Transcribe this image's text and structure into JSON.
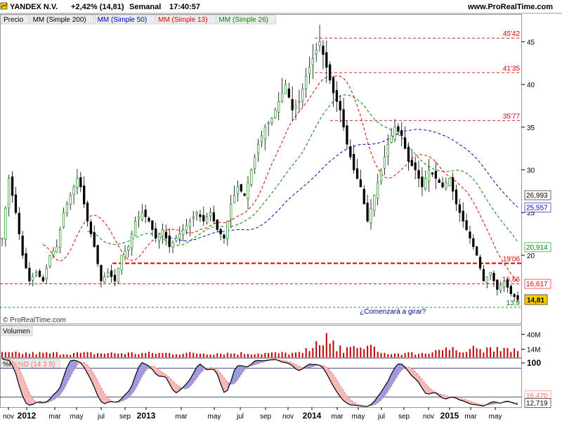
{
  "header": {
    "symbol": "YANDEX N.V.",
    "change": "+2,42% (14,81)",
    "period": "Semanal",
    "time": "17:40:57",
    "site": "www.ProRealTime.com"
  },
  "legend": {
    "items": [
      {
        "label": "Precio",
        "color": "#000000"
      },
      {
        "label": "MM (Simple 200)",
        "color": "#000000"
      },
      {
        "label": "MM (Simple 50)",
        "color": "#0000c8"
      },
      {
        "label": "MM (Simple 13)",
        "color": "#e00000"
      },
      {
        "label": "MM (Simple 26)",
        "color": "#008800"
      }
    ]
  },
  "watermark": "© ProRealTime.com",
  "annotation": "¿Comenzará a girar?",
  "volume_label": "Volumen",
  "stoch_labels": [
    "%K",
    "%D (14 3 5)"
  ],
  "colors": {
    "up": "#1a8a1a",
    "down": "#000000",
    "sma50": "#0000c8",
    "sma13": "#e00000",
    "sma26": "#008800",
    "level": "#e00000",
    "volume": "#c00000",
    "k": "#000000",
    "dfill": "#f4b8b8",
    "dline": "#ff6666",
    "kfill": "#9a9ae0"
  },
  "chart_data": {
    "type": "line",
    "title": "YANDEX N.V.",
    "price_axis": {
      "min": 13.0,
      "max": 47.0,
      "ticks": [
        20,
        25,
        30,
        35,
        40,
        45
      ]
    },
    "x_tick_labels": [
      {
        "label": "nov",
        "bold": false
      },
      {
        "label": "2012",
        "bold": true
      },
      {
        "label": "mar",
        "bold": false
      },
      {
        "label": "may",
        "bold": false
      },
      {
        "label": "jul",
        "bold": false
      },
      {
        "label": "sep",
        "bold": false
      },
      {
        "label": "2013",
        "bold": true
      },
      {
        "label": "mar",
        "bold": false
      },
      {
        "label": "may",
        "bold": false
      },
      {
        "label": "jul",
        "bold": false
      },
      {
        "label": "sep",
        "bold": false
      },
      {
        "label": "nov",
        "bold": false
      },
      {
        "label": "2014",
        "bold": true
      },
      {
        "label": "mar",
        "bold": false
      },
      {
        "label": "may",
        "bold": false
      },
      {
        "label": "jul",
        "bold": false
      },
      {
        "label": "sep",
        "bold": false
      },
      {
        "label": "nov",
        "bold": false
      },
      {
        "label": "2015",
        "bold": true
      },
      {
        "label": "mar",
        "bold": false
      },
      {
        "label": "may",
        "bold": false
      }
    ],
    "levels": [
      {
        "value": 45.42,
        "label": "45'42",
        "style": "dashed"
      },
      {
        "value": 41.35,
        "label": "41'35",
        "style": "dashed"
      },
      {
        "value": 35.77,
        "label": "35'77",
        "style": "dashed"
      },
      {
        "value": 19.06,
        "label": "19'06",
        "style": "thick-dashed"
      },
      {
        "value": 16.66,
        "label": "16,66",
        "style": "dashed"
      },
      {
        "value": 13.9,
        "label": "13,9",
        "style": "green-dashed"
      }
    ],
    "value_tags": [
      {
        "value": 26.993,
        "label": "26,993",
        "color": "#000000"
      },
      {
        "value": 25.557,
        "label": "25,557",
        "color": "#0000c8"
      },
      {
        "value": 20.914,
        "label": "20,914",
        "color": "#008800"
      },
      {
        "value": 16.617,
        "label": "16,617",
        "color": "#e00000"
      },
      {
        "value": 14.81,
        "label": "14,81",
        "color": "#000000",
        "filled": true
      }
    ],
    "price_anchors": [
      [
        0,
        22
      ],
      [
        2,
        29
      ],
      [
        4,
        25
      ],
      [
        6,
        20
      ],
      [
        8,
        17
      ],
      [
        10,
        18
      ],
      [
        12,
        17
      ],
      [
        14,
        20
      ],
      [
        16,
        21
      ],
      [
        18,
        25
      ],
      [
        20,
        27
      ],
      [
        22,
        29
      ],
      [
        23,
        28
      ],
      [
        25,
        24
      ],
      [
        27,
        21
      ],
      [
        29,
        17
      ],
      [
        31,
        18
      ],
      [
        33,
        17
      ],
      [
        35,
        20
      ],
      [
        37,
        21
      ],
      [
        39,
        24
      ],
      [
        41,
        25
      ],
      [
        43,
        24
      ],
      [
        45,
        22
      ],
      [
        47,
        23
      ],
      [
        49,
        21
      ],
      [
        51,
        22
      ],
      [
        53,
        23
      ],
      [
        55,
        24
      ],
      [
        57,
        25
      ],
      [
        59,
        24
      ],
      [
        61,
        25
      ],
      [
        63,
        23
      ],
      [
        65,
        22
      ],
      [
        67,
        26
      ],
      [
        69,
        28
      ],
      [
        71,
        27
      ],
      [
        73,
        30
      ],
      [
        75,
        33
      ],
      [
        77,
        35
      ],
      [
        79,
        36
      ],
      [
        81,
        38
      ],
      [
        83,
        40
      ],
      [
        85,
        37
      ],
      [
        87,
        38
      ],
      [
        89,
        41
      ],
      [
        91,
        43
      ],
      [
        93,
        45
      ],
      [
        95,
        42
      ],
      [
        97,
        39
      ],
      [
        99,
        37
      ],
      [
        101,
        33
      ],
      [
        103,
        30
      ],
      [
        105,
        28
      ],
      [
        107,
        24
      ],
      [
        109,
        27
      ],
      [
        111,
        30
      ],
      [
        113,
        33
      ],
      [
        115,
        35
      ],
      [
        117,
        34
      ],
      [
        119,
        31
      ],
      [
        121,
        30
      ],
      [
        123,
        28
      ],
      [
        125,
        30
      ],
      [
        127,
        29
      ],
      [
        129,
        28
      ],
      [
        131,
        29
      ],
      [
        133,
        26
      ],
      [
        135,
        24
      ],
      [
        137,
        22
      ],
      [
        139,
        20
      ],
      [
        141,
        17
      ],
      [
        143,
        18
      ],
      [
        145,
        16
      ],
      [
        147,
        17
      ],
      [
        149,
        15.5
      ],
      [
        151,
        14.81
      ]
    ],
    "volume_axis": {
      "ticks": [
        {
          "value": 40,
          "label": "40M"
        },
        {
          "value": 14,
          "label": "14M"
        }
      ],
      "max": 55
    },
    "stoch_axis": {
      "min": 0,
      "max": 100,
      "ticks": [
        {
          "value": 100,
          "label": "100"
        }
      ]
    },
    "stoch_tags": [
      {
        "value": 16.47,
        "label": "16,470",
        "color": "#ff6666"
      },
      {
        "value": 12.719,
        "label": "12,719",
        "color": "#000000"
      }
    ]
  }
}
